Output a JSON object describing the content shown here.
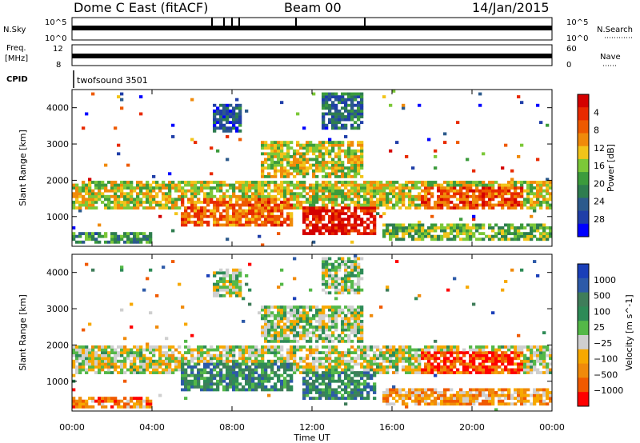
{
  "header": {
    "station": "Dome C East (fitACF)",
    "beam": "Beam 00",
    "date": "14/Jan/2015"
  },
  "noise_panel": {
    "left_label": "N.Sky",
    "left_ticks": [
      "10^5",
      "10^0"
    ],
    "right_label": "N.Search",
    "right_ticks": [
      "10^5",
      "10^0"
    ]
  },
  "freq_panel": {
    "left_label_1": "Freq.",
    "left_label_2": "[MHz]",
    "left_ticks": [
      "12",
      "8"
    ],
    "right_label": "Nave",
    "right_ticks": [
      "60",
      "0"
    ]
  },
  "cpid_panel": {
    "label": "CPID",
    "program": "twofsound 3501"
  },
  "colors": {
    "power": [
      "#0000ff",
      "#1f3ea8",
      "#2c5a8c",
      "#2e7d4f",
      "#3c9b3c",
      "#7cc838",
      "#f2c41a",
      "#f08a0a",
      "#ee5a00",
      "#e82a00",
      "#d40000"
    ],
    "velocity": [
      "#1a3fb8",
      "#2d5aa8",
      "#3f7d5a",
      "#2e8b57",
      "#54b848",
      "#cfcfcf",
      "#f7a800",
      "#f08a0a",
      "#f05a00",
      "#ff0000"
    ]
  },
  "chart_data": [
    {
      "type": "heatmap",
      "name": "power",
      "xlabel": "",
      "ylabel": "Slant Range [km]",
      "x_ticks": [
        "00:00",
        "04:00",
        "08:00",
        "12:00",
        "16:00",
        "20:00",
        "00:00"
      ],
      "y_ticks": [
        "1000",
        "2000",
        "3000",
        "4000"
      ],
      "xlim": [
        0,
        24
      ],
      "ylim": [
        180,
        4500
      ],
      "colorbar": {
        "label": "Power [dB]",
        "ticks": [
          "4",
          "8",
          "12",
          "16",
          "20",
          "24",
          "28"
        ],
        "range": [
          0,
          31
        ]
      },
      "features": [
        {
          "t0": 0.0,
          "t1": 24.0,
          "r0": 1200,
          "r1": 1950,
          "level": 0.55
        },
        {
          "t0": 0.0,
          "t1": 4.0,
          "r0": 280,
          "r1": 560,
          "level": 0.35
        },
        {
          "t0": 5.5,
          "t1": 11.0,
          "r0": 700,
          "r1": 1500,
          "level": 0.75
        },
        {
          "t0": 11.5,
          "t1": 15.2,
          "r0": 500,
          "r1": 1300,
          "level": 0.95
        },
        {
          "t0": 9.5,
          "t1": 14.5,
          "r0": 2100,
          "r1": 3100,
          "level": 0.55
        },
        {
          "t0": 17.5,
          "t1": 22.5,
          "r0": 1200,
          "r1": 1800,
          "level": 0.8
        },
        {
          "t0": 15.5,
          "t1": 24.0,
          "r0": 300,
          "r1": 800,
          "level": 0.45
        },
        {
          "t0": 7.0,
          "t1": 8.5,
          "r0": 3300,
          "r1": 4100,
          "level": 0.2
        },
        {
          "t0": 12.5,
          "t1": 14.5,
          "r0": 3400,
          "r1": 4400,
          "level": 0.25
        }
      ]
    },
    {
      "type": "heatmap",
      "name": "velocity",
      "xlabel": "Time UT",
      "ylabel": "Slant Range [km]",
      "x_ticks": [
        "00:00",
        "04:00",
        "08:00",
        "12:00",
        "16:00",
        "20:00",
        "00:00"
      ],
      "y_ticks": [
        "1000",
        "2000",
        "3000",
        "4000"
      ],
      "xlim": [
        0,
        24
      ],
      "ylim": [
        180,
        4500
      ],
      "colorbar": {
        "label": "Velocity [m s^-1]",
        "ticks": [
          "1000",
          "500",
          "100",
          "25",
          "−25",
          "−100",
          "−500",
          "−1000"
        ]
      },
      "features": [
        {
          "t0": 0.0,
          "t1": 24.0,
          "r0": 1200,
          "r1": 1950,
          "level": 0.45
        },
        {
          "t0": 0.0,
          "t1": 4.0,
          "r0": 280,
          "r1": 560,
          "level": 0.25
        },
        {
          "t0": 5.5,
          "t1": 11.0,
          "r0": 700,
          "r1": 1500,
          "level": 0.7
        },
        {
          "t0": 11.5,
          "t1": 15.2,
          "r0": 500,
          "r1": 1300,
          "level": 0.72
        },
        {
          "t0": 9.5,
          "t1": 14.5,
          "r0": 2100,
          "r1": 3100,
          "level": 0.5
        },
        {
          "t0": 17.5,
          "t1": 22.5,
          "r0": 1200,
          "r1": 1800,
          "level": 0.15
        },
        {
          "t0": 15.5,
          "t1": 24.0,
          "r0": 300,
          "r1": 800,
          "level": 0.3
        },
        {
          "t0": 7.0,
          "t1": 8.5,
          "r0": 3300,
          "r1": 4100,
          "level": 0.5
        },
        {
          "t0": 12.5,
          "t1": 14.5,
          "r0": 3400,
          "r1": 4400,
          "level": 0.5
        }
      ]
    }
  ]
}
